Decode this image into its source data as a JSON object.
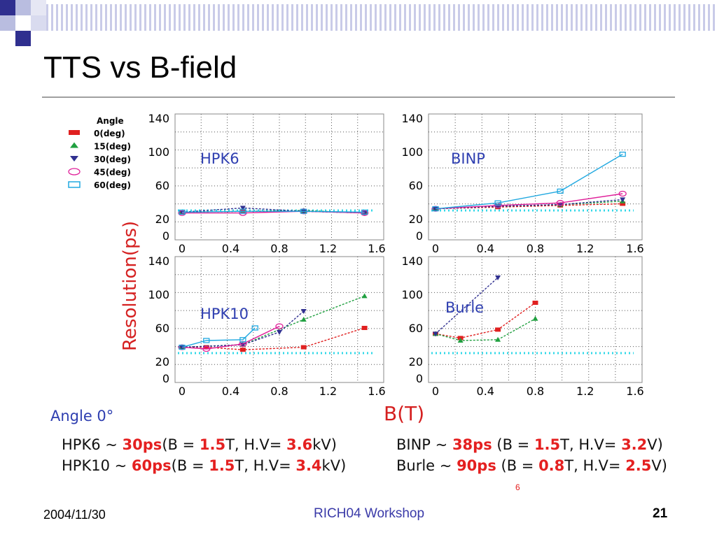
{
  "slide": {
    "title": "TTS vs B-field",
    "footer_date": "2004/11/30",
    "footer_center": "RICH04 Workshop",
    "slide_number": "21",
    "angle_note": "Angle 0°",
    "stray_mark": "6",
    "colors": {
      "accent_blue": "#2e3eb0",
      "highlight_red": "#e42020",
      "decor_blue": "#2f2f8f",
      "decor_light": "#b9bde0"
    }
  },
  "summary": [
    {
      "name": "HPK6",
      "sep": " ~ ",
      "value": "30ps",
      "b_pre": "(B = ",
      "b": "1.5",
      "hv_pre": "T, H.V= ",
      "hv": "3.6",
      "unit": "kV)"
    },
    {
      "name": "HPK10",
      "sep": " ~ ",
      "value": "60ps",
      "b_pre": "(B = ",
      "b": "1.5",
      "hv_pre": "T, H.V= ",
      "hv": "3.4",
      "unit": "kV)"
    },
    {
      "name": "BINP",
      "sep": " ~ ",
      "value": "38ps",
      "b_pre": " (B = ",
      "b": "1.5",
      "hv_pre": "T, H.V= ",
      "hv": "3.2",
      "unit": "V)"
    },
    {
      "name": "Burle",
      "sep": " ~ ",
      "value": "90ps",
      "b_pre": " (B = ",
      "b": "0.8",
      "hv_pre": "T, H.V= ",
      "hv": "2.5",
      "unit": "V)"
    }
  ],
  "chart_data": [
    {
      "type": "line",
      "title": "HPK6",
      "xlabel": "B(T)",
      "ylabel": "Resolution(ps)",
      "xlim": [
        0,
        1.6
      ],
      "ylim": [
        0,
        140
      ],
      "xticks": [
        "0",
        "0.4",
        "0.8",
        "1.2",
        "1.6"
      ],
      "yticks": [
        "0",
        "20",
        "60",
        "100",
        "140"
      ],
      "grid": true,
      "reference_level": 30,
      "legend": {
        "title": "Angle",
        "position": "top-left",
        "entries": [
          "0(deg)",
          "15(deg)",
          "30(deg)",
          "45(deg)",
          "60(deg)"
        ]
      },
      "series": [
        {
          "name": "0(deg)",
          "color": "#e02020",
          "marker": "square",
          "x": [
            0,
            0.5,
            1.0,
            1.5
          ],
          "y": [
            28,
            29,
            29,
            27
          ]
        },
        {
          "name": "15(deg)",
          "color": "#20a040",
          "marker": "triangle-up",
          "x": [
            0,
            0.5,
            1.0,
            1.5
          ],
          "y": [
            28,
            29,
            30,
            27
          ]
        },
        {
          "name": "30(deg)",
          "color": "#303090",
          "marker": "triangle-down",
          "x": [
            0,
            0.5,
            1.0,
            1.5
          ],
          "y": [
            28,
            33,
            29,
            27
          ]
        },
        {
          "name": "45(deg)",
          "color": "#e0209a",
          "marker": "circle",
          "x": [
            0,
            0.5,
            1.0,
            1.5
          ],
          "y": [
            27,
            27,
            29,
            27
          ]
        },
        {
          "name": "60(deg)",
          "color": "#20a8e0",
          "marker": "square-open",
          "x": [
            0,
            0.5,
            1.0,
            1.5
          ],
          "y": [
            28,
            29,
            29,
            28
          ]
        }
      ]
    },
    {
      "type": "line",
      "title": "BINP",
      "xlim": [
        0,
        1.6
      ],
      "ylim": [
        0,
        140
      ],
      "xticks": [
        "0",
        "0.4",
        "0.8",
        "1.2",
        "1.6"
      ],
      "yticks": [
        "0",
        "20",
        "60",
        "100",
        "140"
      ],
      "grid": true,
      "reference_level": 30,
      "series": [
        {
          "name": "0(deg)",
          "color": "#e02020",
          "marker": "square",
          "x": [
            0,
            0.5,
            1.0,
            1.5
          ],
          "y": [
            32,
            34,
            36,
            38
          ]
        },
        {
          "name": "15(deg)",
          "color": "#20a040",
          "marker": "triangle-up",
          "x": [
            0,
            0.5,
            1.0,
            1.5
          ],
          "y": [
            32,
            35,
            37,
            41
          ]
        },
        {
          "name": "30(deg)",
          "color": "#303090",
          "marker": "triangle-down",
          "x": [
            0,
            0.5,
            1.0,
            1.5
          ],
          "y": [
            32,
            35,
            37,
            43
          ]
        },
        {
          "name": "45(deg)",
          "color": "#e0209a",
          "marker": "circle",
          "x": [
            0,
            0.5,
            1.0,
            1.5
          ],
          "y": [
            32,
            36,
            39,
            50
          ]
        },
        {
          "name": "60(deg)",
          "color": "#20a8e0",
          "marker": "square-open",
          "x": [
            0,
            0.5,
            1.0,
            1.5
          ],
          "y": [
            32,
            39,
            53,
            97
          ]
        }
      ]
    },
    {
      "type": "line",
      "title": "HPK10",
      "xlim": [
        0,
        1.6
      ],
      "ylim": [
        0,
        140
      ],
      "xticks": [
        "0",
        "0.4",
        "0.8",
        "1.2",
        "1.6"
      ],
      "yticks": [
        "0",
        "20",
        "60",
        "100",
        "140"
      ],
      "grid": true,
      "reference_level": 30,
      "series": [
        {
          "name": "0(deg)",
          "color": "#e02020",
          "marker": "square",
          "x": [
            0,
            0.2,
            0.5,
            1.0,
            1.5
          ],
          "y": [
            37,
            37,
            34,
            37,
            60
          ]
        },
        {
          "name": "15(deg)",
          "color": "#20a040",
          "marker": "triangle-up",
          "x": [
            0,
            0.5,
            1.0,
            1.5
          ],
          "y": [
            37,
            40,
            70,
            98
          ]
        },
        {
          "name": "30(deg)",
          "color": "#303090",
          "marker": "triangle-down",
          "x": [
            0,
            0.5,
            0.8,
            1.0
          ],
          "y": [
            37,
            40,
            55,
            80
          ]
        },
        {
          "name": "45(deg)",
          "color": "#e0209a",
          "marker": "circle",
          "x": [
            0,
            0.2,
            0.5,
            0.8
          ],
          "y": [
            37,
            35,
            41,
            62
          ]
        },
        {
          "name": "60(deg)",
          "color": "#20a8e0",
          "marker": "square-open",
          "x": [
            0,
            0.2,
            0.5,
            0.6
          ],
          "y": [
            37,
            45,
            46,
            60
          ]
        }
      ]
    },
    {
      "type": "line",
      "title": "Burle",
      "xlim": [
        0,
        1.6
      ],
      "ylim": [
        0,
        140
      ],
      "xticks": [
        "0",
        "0.4",
        "0.8",
        "1.2",
        "1.6"
      ],
      "yticks": [
        "0",
        "20",
        "60",
        "100",
        "140"
      ],
      "grid": true,
      "reference_level": 30,
      "series": [
        {
          "name": "0(deg)",
          "color": "#e02020",
          "marker": "square",
          "x": [
            0,
            0.2,
            0.5,
            0.8
          ],
          "y": [
            53,
            48,
            58,
            90
          ]
        },
        {
          "name": "15(deg)",
          "color": "#20a040",
          "marker": "triangle-up",
          "x": [
            0,
            0.2,
            0.5,
            0.8
          ],
          "y": [
            53,
            45,
            46,
            71
          ]
        },
        {
          "name": "30(deg)",
          "color": "#303090",
          "marker": "triangle-down",
          "x": [
            0,
            0.5
          ],
          "y": [
            53,
            120
          ]
        }
      ]
    }
  ]
}
